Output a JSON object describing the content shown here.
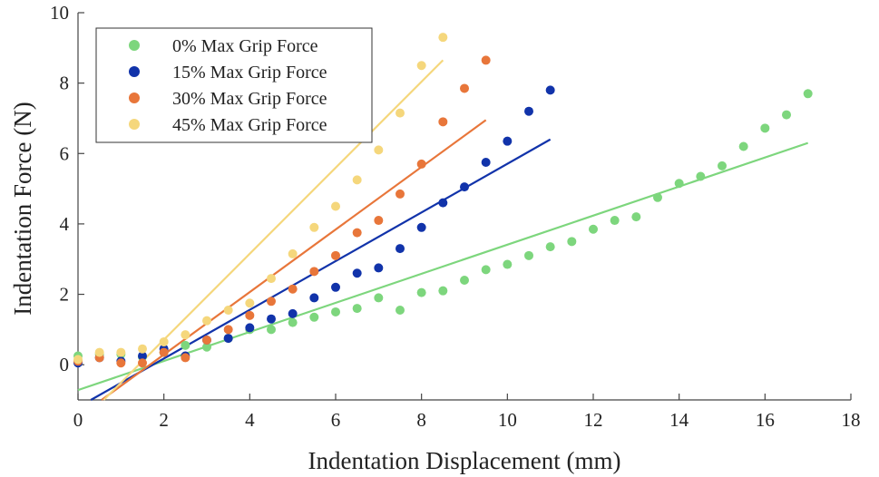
{
  "chart_data": {
    "type": "scatter",
    "xlabel": "Indentation Displacement (mm)",
    "ylabel": "Indentation Force (N)",
    "xlim": [
      0,
      18
    ],
    "ylim": [
      -1,
      10
    ],
    "xticks": [
      0,
      2,
      4,
      6,
      8,
      10,
      12,
      14,
      16,
      18
    ],
    "yticks": [
      0,
      2,
      4,
      6,
      8,
      10
    ],
    "grid": false,
    "legend_position": "top-left",
    "series": [
      {
        "name": "0% Max Grip Force",
        "color": "#7dd67d",
        "x": [
          0,
          0.5,
          1,
          1.5,
          2,
          2.5,
          3,
          3.5,
          4,
          4.5,
          5,
          5.5,
          6,
          6.5,
          7,
          7.5,
          8,
          8.5,
          9,
          9.5,
          10,
          10.5,
          11,
          11.5,
          12,
          12.5,
          13,
          13.5,
          14,
          14.5,
          15,
          15.5,
          16,
          16.5,
          17
        ],
        "y": [
          0.25,
          0.3,
          0.3,
          0.22,
          0.35,
          0.55,
          0.5,
          0.75,
          1.0,
          1.0,
          1.2,
          1.35,
          1.5,
          1.6,
          1.9,
          1.55,
          2.05,
          2.1,
          2.4,
          2.7,
          2.85,
          3.1,
          3.35,
          3.5,
          3.85,
          4.1,
          4.2,
          4.75,
          5.15,
          5.35,
          5.65,
          6.2,
          6.72,
          7.1,
          7.7
        ],
        "fit": {
          "x": [
            0,
            17
          ],
          "y": [
            -0.72,
            6.3
          ]
        }
      },
      {
        "name": "15% Max Grip Force",
        "color": "#1133aa",
        "x": [
          0,
          0.5,
          1,
          1.5,
          2,
          2.5,
          3,
          3.5,
          4,
          4.5,
          5,
          5.5,
          6,
          6.5,
          7,
          7.5,
          8,
          8.5,
          9,
          9.5,
          10,
          10.5,
          11
        ],
        "y": [
          0.05,
          0.2,
          0.1,
          0.25,
          0.45,
          0.25,
          0.7,
          0.75,
          1.05,
          1.3,
          1.45,
          1.9,
          2.2,
          2.6,
          2.75,
          3.3,
          3.9,
          4.6,
          5.05,
          5.75,
          6.35,
          7.2,
          7.8
        ],
        "fit": {
          "x": [
            0.3,
            11
          ],
          "y": [
            -1.0,
            6.4
          ]
        }
      },
      {
        "name": "30% Max Grip Force",
        "color": "#e8763a",
        "x": [
          0,
          0.5,
          1,
          1.5,
          2,
          2.5,
          3,
          3.5,
          4,
          4.5,
          5,
          5.5,
          6,
          6.5,
          7,
          7.5,
          8,
          8.5,
          9,
          9.5
        ],
        "y": [
          0.1,
          0.2,
          0.05,
          0.05,
          0.35,
          0.2,
          0.7,
          1.0,
          1.4,
          1.8,
          2.15,
          2.65,
          3.1,
          3.75,
          4.1,
          4.85,
          5.7,
          6.9,
          7.85,
          8.65
        ],
        "fit": {
          "x": [
            0.55,
            9.5
          ],
          "y": [
            -1.0,
            6.95
          ]
        }
      },
      {
        "name": "45% Max Grip Force",
        "color": "#f5d77c",
        "x": [
          0,
          0.5,
          1,
          1.5,
          2,
          2.5,
          3,
          3.5,
          4,
          4.5,
          5,
          5.5,
          6,
          6.5,
          7,
          7.5,
          8,
          8.5
        ],
        "y": [
          0.15,
          0.35,
          0.35,
          0.45,
          0.65,
          0.85,
          1.25,
          1.55,
          1.75,
          2.45,
          3.15,
          3.9,
          4.5,
          5.25,
          6.1,
          7.15,
          8.5,
          9.3
        ],
        "fit": {
          "x": [
            0.6,
            8.5
          ],
          "y": [
            -1.0,
            8.65
          ]
        }
      }
    ]
  }
}
